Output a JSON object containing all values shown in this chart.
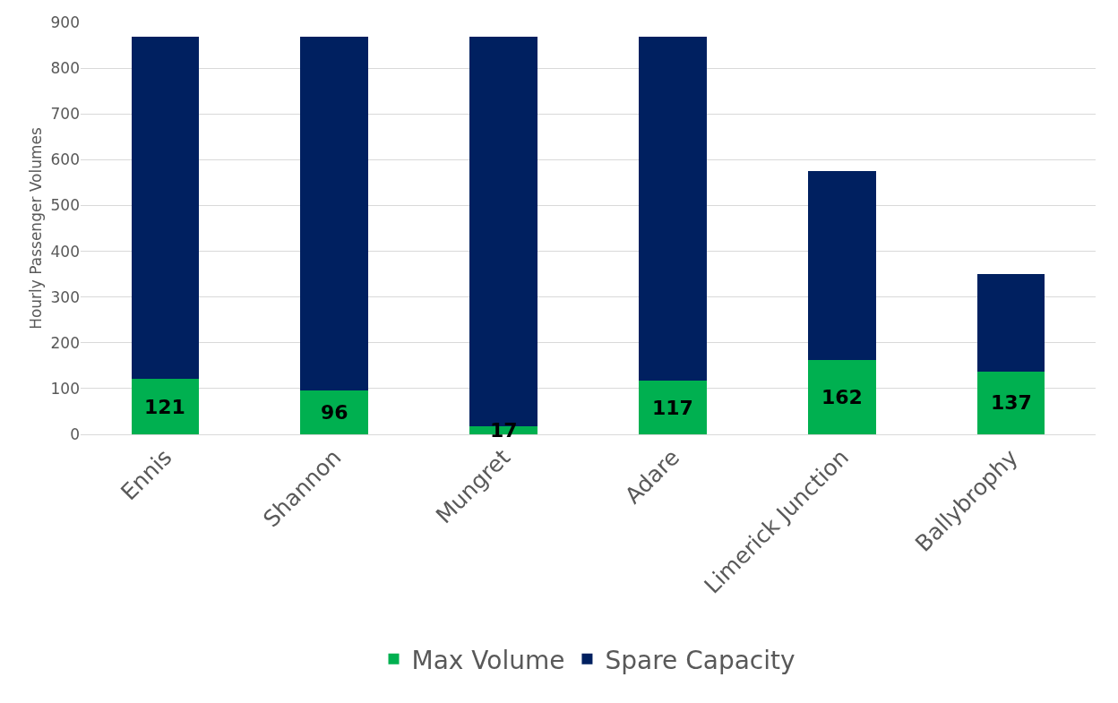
{
  "chart_data": {
    "type": "bar",
    "stacked": true,
    "ylabel": "Hourly Passenger Volumes",
    "categories": [
      "Ennis",
      "Shannon",
      "Mungret",
      "Adare",
      "Limerick Junction",
      "Ballybrophy"
    ],
    "series": [
      {
        "name": "Max Volume",
        "color": "#00b050",
        "values": [
          121,
          96,
          17,
          117,
          162,
          137
        ],
        "value_labels": [
          "121",
          "96",
          "17",
          "117",
          "162",
          "137"
        ]
      },
      {
        "name": "Spare Capacity",
        "color": "#002060",
        "values": [
          747,
          772,
          851,
          751,
          414,
          214
        ]
      }
    ],
    "ylim": [
      0,
      900
    ],
    "yticks": [
      0,
      100,
      200,
      300,
      400,
      500,
      600,
      700,
      800,
      900
    ],
    "grid": "y",
    "legend": "bottom"
  }
}
